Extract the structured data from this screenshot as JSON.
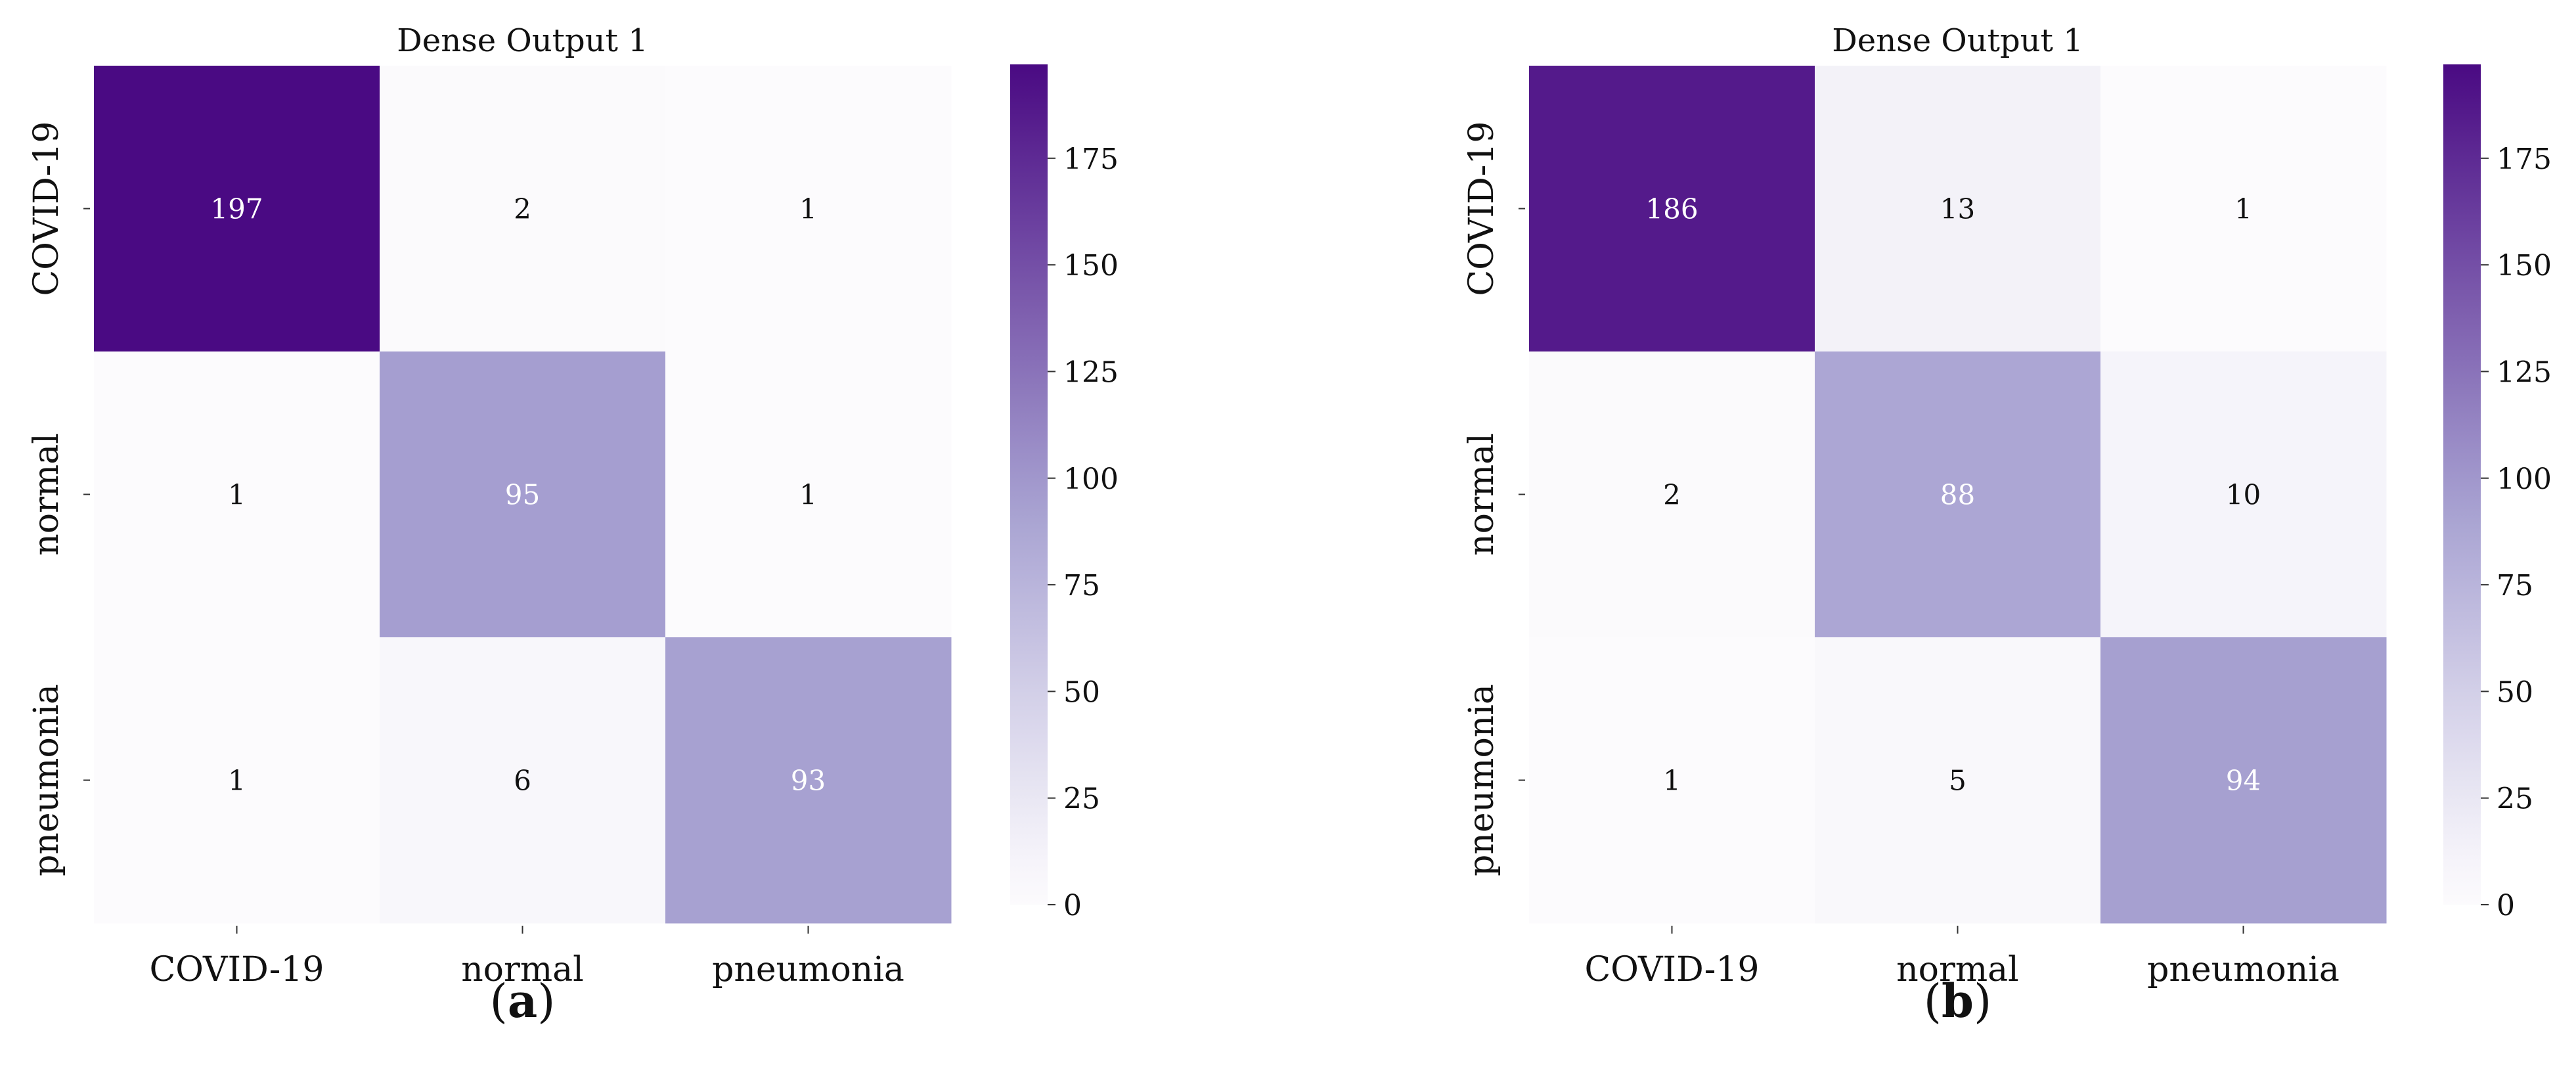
{
  "colors": {
    "max": "#4a0a83",
    "mid": "#a59fd0",
    "low": "#fcfbfd",
    "dark_text": "#111111",
    "light_text": "#ffffff"
  },
  "chart_data": [
    {
      "type": "heatmap",
      "title": "Dense Output 1",
      "panel_label": "a",
      "x_categories": [
        "COVID-19",
        "normal",
        "pneumonia"
      ],
      "y_categories": [
        "COVID-19",
        "normal",
        "pneumonia"
      ],
      "values": [
        [
          197,
          2,
          1
        ],
        [
          1,
          95,
          1
        ],
        [
          1,
          6,
          93
        ]
      ],
      "colorbar": {
        "range": [
          0,
          197
        ],
        "ticks": [
          0,
          25,
          50,
          75,
          100,
          125,
          150,
          175
        ]
      }
    },
    {
      "type": "heatmap",
      "title": "Dense Output 1",
      "panel_label": "b",
      "x_categories": [
        "COVID-19",
        "normal",
        "pneumonia"
      ],
      "y_categories": [
        "COVID-19",
        "normal",
        "pneumonia"
      ],
      "values": [
        [
          186,
          13,
          1
        ],
        [
          2,
          88,
          10
        ],
        [
          1,
          5,
          94
        ]
      ],
      "colorbar": {
        "range": [
          0,
          197
        ],
        "ticks": [
          0,
          25,
          50,
          75,
          100,
          125,
          150,
          175
        ]
      }
    }
  ]
}
